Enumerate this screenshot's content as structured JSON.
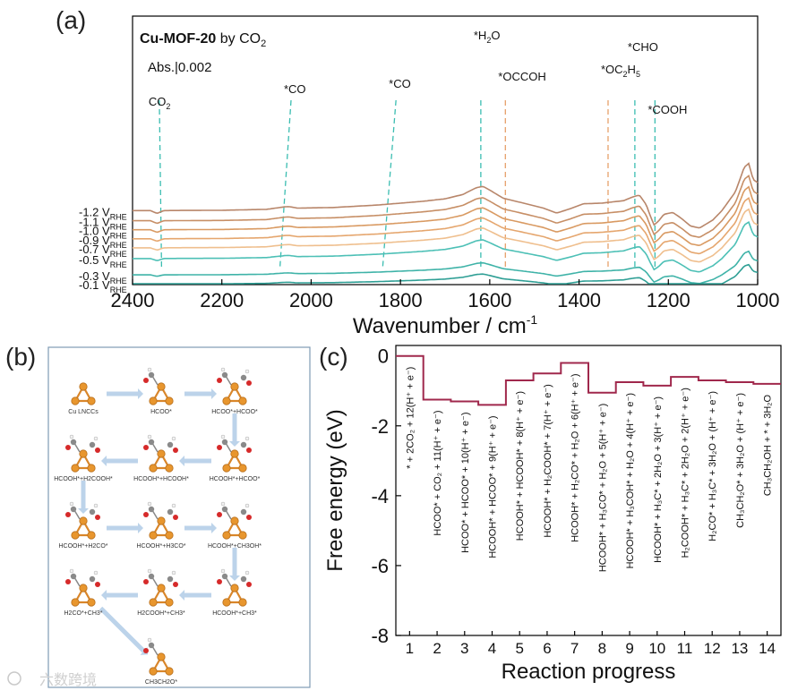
{
  "panel_labels": {
    "a": "(a)",
    "b": "(b)",
    "c": "(c)"
  },
  "watermark": "六数跨境",
  "chart_data": [
    {
      "type": "line",
      "panel": "a",
      "title_bold": "Cu-MOF-20",
      "title_rest": " by CO",
      "title_sub": "2",
      "scale_bar": "Abs.|0.002",
      "xlabel": "Wavenumber / cm",
      "xlabel_sup": "-1",
      "ylabel": "",
      "xlim": [
        2400,
        1000
      ],
      "xticks": [
        2400,
        2200,
        2000,
        1800,
        1600,
        1400,
        1200,
        1000
      ],
      "grid": false,
      "curve_profile_wavenumbers": [
        2400,
        2360,
        2345,
        2330,
        2300,
        2200,
        2100,
        2060,
        2050,
        2030,
        1950,
        1850,
        1800,
        1750,
        1700,
        1660,
        1630,
        1615,
        1600,
        1570,
        1530,
        1480,
        1450,
        1420,
        1390,
        1350,
        1300,
        1280,
        1265,
        1250,
        1240,
        1232,
        1222,
        1210,
        1190,
        1170,
        1150,
        1130,
        1100,
        1080,
        1050,
        1040,
        1030,
        1020,
        1010,
        1000
      ],
      "curve_profile_shape": [
        0.0,
        0.0,
        -0.45,
        0.0,
        0.02,
        0.05,
        0.2,
        0.6,
        0.65,
        0.4,
        0.5,
        0.9,
        1.2,
        1.5,
        1.9,
        2.6,
        3.7,
        3.9,
        3.3,
        2.0,
        1.3,
        0.4,
        -0.4,
        0.3,
        1.1,
        1.2,
        1.6,
        2.2,
        2.5,
        1.0,
        -0.9,
        -2.3,
        -1.7,
        -0.6,
        -0.3,
        -1.3,
        -2.5,
        -2.8,
        -1.5,
        0.0,
        3.0,
        5.0,
        7.0,
        7.6,
        5.0,
        4.5
      ],
      "series": [
        {
          "name": "-1.2 V",
          "sub": "RHE",
          "color": "#b8866a",
          "offset": 9.0,
          "gain": 1.1
        },
        {
          "name": "-1.1 V",
          "sub": "RHE",
          "color": "#c78f66",
          "offset": 7.2,
          "gain": 1.05
        },
        {
          "name": "-1.0 V",
          "sub": "RHE",
          "color": "#d99a62",
          "offset": 5.6,
          "gain": 1.0
        },
        {
          "name": "-0.9 V",
          "sub": "RHE",
          "color": "#e5a66e",
          "offset": 4.0,
          "gain": 0.95
        },
        {
          "name": "-0.7 V",
          "sub": "RHE",
          "color": "#efbf8e",
          "offset": 2.4,
          "gain": 0.9
        },
        {
          "name": "-0.5 V",
          "sub": "RHE",
          "color": "#4dc0b6",
          "offset": 0.5,
          "gain": 0.85
        },
        {
          "name": "-0.3 V",
          "sub": "RHE",
          "color": "#3fb3a8",
          "offset": -2.4,
          "gain": 0.55
        },
        {
          "name": "-0.1 V",
          "sub": "RHE",
          "color": "#2f9f95",
          "offset": -4.0,
          "gain": 0.45
        }
      ],
      "annotations": [
        {
          "label": "CO",
          "sub": "2",
          "prefix": "",
          "sup": "",
          "tail": "",
          "color": "#3bbdb1",
          "x_top": 2340,
          "x_bottom": 2335
        },
        {
          "label": "*CO",
          "sub": "",
          "prefix": "",
          "sup": "",
          "tail": "",
          "color": "#3bbdb1",
          "x_top": 2045,
          "x_bottom": 2070
        },
        {
          "label": "*CO",
          "sub": "",
          "prefix": "",
          "sup": "",
          "tail": "",
          "color": "#3bbdb1",
          "x_top": 1810,
          "x_bottom": 1840
        },
        {
          "label": "*H",
          "sub": "2",
          "prefix": "",
          "sup": "",
          "tail": "O",
          "color": "#3bbdb1",
          "x_top": 1620,
          "x_bottom": 1620
        },
        {
          "label": "*OCCOH",
          "sub": "",
          "prefix": "",
          "sup": "",
          "tail": "",
          "color": "#e6a06a",
          "x_top": 1565,
          "x_bottom": 1565
        },
        {
          "label": "*OC",
          "sub": "2",
          "prefix": "",
          "sup": "",
          "tail": "H",
          "tail_sub": "5",
          "color": "#e6a06a",
          "x_top": 1335,
          "x_bottom": 1335
        },
        {
          "label": "*CHO",
          "sub": "",
          "prefix": "",
          "sup": "",
          "tail": "",
          "color": "#3bbdb1",
          "x_top": 1275,
          "x_bottom": 1275
        },
        {
          "label": "*COOH",
          "sub": "",
          "prefix": "",
          "sup": "",
          "tail": "",
          "color": "#3bbdb1",
          "x_top": 1230,
          "x_bottom": 1230
        }
      ]
    },
    {
      "type": "line",
      "panel": "c",
      "step_style": true,
      "xlabel": "Reaction progress",
      "ylabel": "Free energy (eV)",
      "ylim": [
        -8,
        0.3
      ],
      "yticks": [
        0,
        -2,
        -4,
        -6,
        -8
      ],
      "x": [
        1,
        2,
        3,
        4,
        5,
        6,
        7,
        8,
        9,
        10,
        11,
        12,
        13,
        14
      ],
      "values": [
        0.0,
        -1.25,
        -1.3,
        -1.4,
        -0.7,
        -0.5,
        -0.2,
        -1.05,
        -0.75,
        -0.85,
        -0.6,
        -0.7,
        -0.75,
        -0.8
      ],
      "line_color": "#a0284c",
      "step_labels": [
        "* + 2CO₂ + 12(H⁺ + e⁻)",
        "HCOO* + CO₂ + 11(H⁺ + e⁻)",
        "HCOO* + HCOO* + 10(H⁺ + e⁻)",
        "HCOOH* + HCOO* + 9(H⁺ + e⁻)",
        "HCOOH* + HCOOH* + 8(H⁺ + e⁻)",
        "HCOOH* + H₂COOH* + 7(H⁺ + e⁻)",
        "HCOOH* + H₂CO* + H₂O + 6(H⁺ + e⁻)",
        "HCOOH* + H₃CO* + H₂O + 5(H⁺ + e⁻)",
        "HCOOH* + H₃COH* + H₂O + 4(H⁺ + e⁻)",
        "HCOOH* + H₃C* + 2H₂O + 3(H⁺ + e⁻)",
        "H₂COOH* + H₃C* + 2H₂O + 2(H⁺ + e⁻)",
        "H₂CO* + H₃C* + 3H₂O + (H⁺ + e⁻)",
        "CH₃CH₂O* + 3H₂O + (H⁺ + e⁻)",
        "CH₃CH₂OH + * + 3H₂O"
      ]
    }
  ],
  "scheme_b": {
    "nodes": [
      {
        "label": "Cu LNCCs"
      },
      {
        "label": "HCOO*"
      },
      {
        "label": "HCOO*+HCOO*"
      },
      {
        "label": "HCOOH*+H2COOH*"
      },
      {
        "label": "HCOOH*+HCOOH*"
      },
      {
        "label": "HCOOH*+HCOO*"
      },
      {
        "label": "HCOOH*+H2CO*"
      },
      {
        "label": "HCOOH*+H3CO*"
      },
      {
        "label": "HCOOH*+CH3OH*"
      },
      {
        "label": "H2CO*+CH3*"
      },
      {
        "label": "H2COOH*+CH3*"
      },
      {
        "label": "HCOOH*+CH3*"
      },
      {
        "label": "CH3CH2O*"
      }
    ]
  }
}
